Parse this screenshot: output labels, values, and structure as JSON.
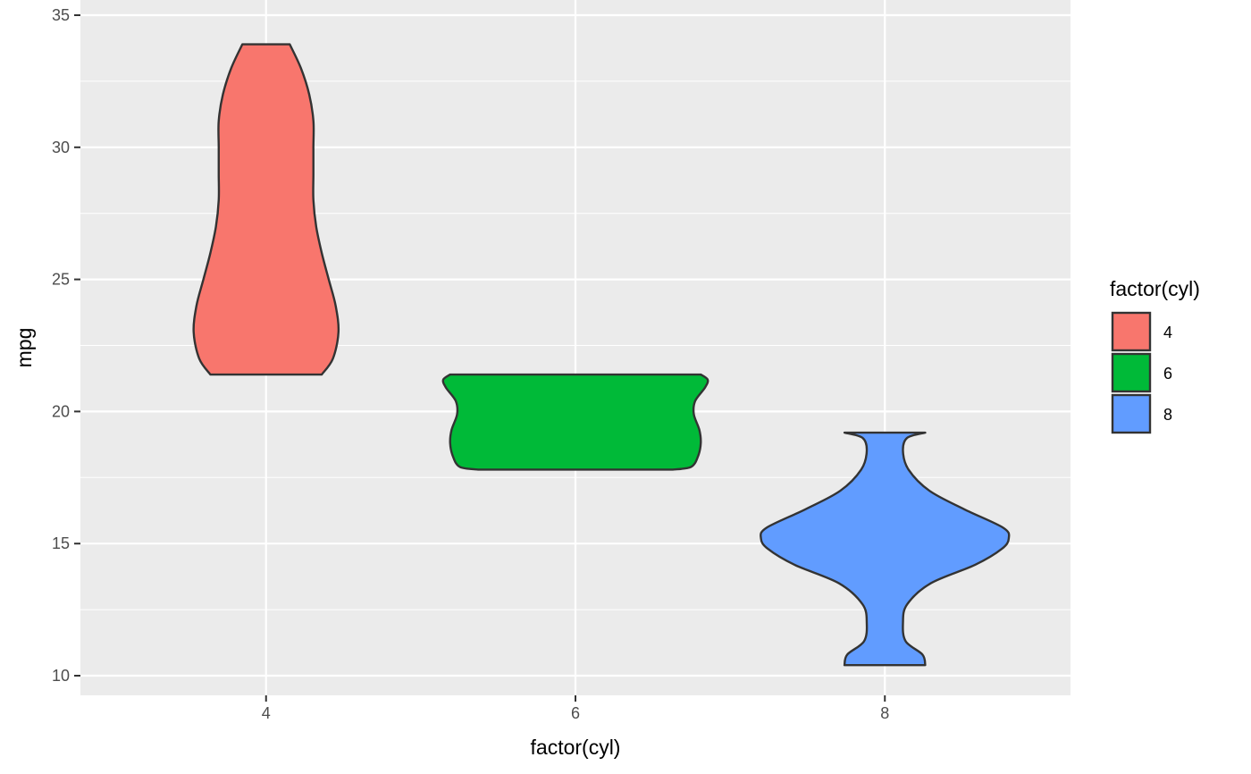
{
  "chart_data": {
    "type": "violin",
    "xlabel": "factor(cyl)",
    "ylabel": "mpg",
    "categories": [
      "4",
      "6",
      "8"
    ],
    "x_values": [
      4,
      6,
      8
    ],
    "xlim": [
      2.8,
      9.2
    ],
    "ylim": [
      9.25,
      35.0
    ],
    "yticks": [
      10,
      15,
      20,
      25,
      30,
      35
    ],
    "grid": true,
    "legend": {
      "title": "factor(cyl)",
      "placement": "right",
      "entries": [
        "4",
        "6",
        "8"
      ]
    },
    "series": [
      {
        "name": "4",
        "x": 4,
        "color": "#F8766D",
        "range": [
          21.4,
          33.9
        ],
        "profile": [
          [
            21.4,
            0.4
          ],
          [
            22.0,
            0.48
          ],
          [
            23.0,
            0.52
          ],
          [
            24.0,
            0.5
          ],
          [
            25.0,
            0.45
          ],
          [
            26.0,
            0.4
          ],
          [
            27.0,
            0.36
          ],
          [
            28.0,
            0.34
          ],
          [
            29.0,
            0.34
          ],
          [
            30.0,
            0.34
          ],
          [
            31.0,
            0.34
          ],
          [
            32.0,
            0.31
          ],
          [
            33.0,
            0.25
          ],
          [
            33.9,
            0.17
          ]
        ]
      },
      {
        "name": "6",
        "x": 6,
        "color": "#00BA38",
        "range": [
          17.8,
          21.4
        ],
        "profile": [
          [
            17.8,
            0.7
          ],
          [
            17.9,
            0.83
          ],
          [
            18.3,
            0.88
          ],
          [
            18.8,
            0.9
          ],
          [
            19.3,
            0.89
          ],
          [
            19.9,
            0.85
          ],
          [
            20.4,
            0.86
          ],
          [
            20.9,
            0.93
          ],
          [
            21.2,
            0.95
          ],
          [
            21.4,
            0.9
          ]
        ]
      },
      {
        "name": "8",
        "x": 8,
        "color": "#619CFF",
        "range": [
          10.4,
          19.2
        ],
        "profile": [
          [
            10.4,
            0.29
          ],
          [
            10.8,
            0.27
          ],
          [
            11.3,
            0.15
          ],
          [
            12.0,
            0.13
          ],
          [
            12.7,
            0.16
          ],
          [
            13.5,
            0.33
          ],
          [
            14.2,
            0.65
          ],
          [
            14.8,
            0.84
          ],
          [
            15.2,
            0.89
          ],
          [
            15.6,
            0.85
          ],
          [
            16.3,
            0.57
          ],
          [
            17.0,
            0.32
          ],
          [
            17.8,
            0.17
          ],
          [
            18.5,
            0.13
          ],
          [
            19.0,
            0.16
          ],
          [
            19.2,
            0.29
          ]
        ]
      }
    ]
  }
}
